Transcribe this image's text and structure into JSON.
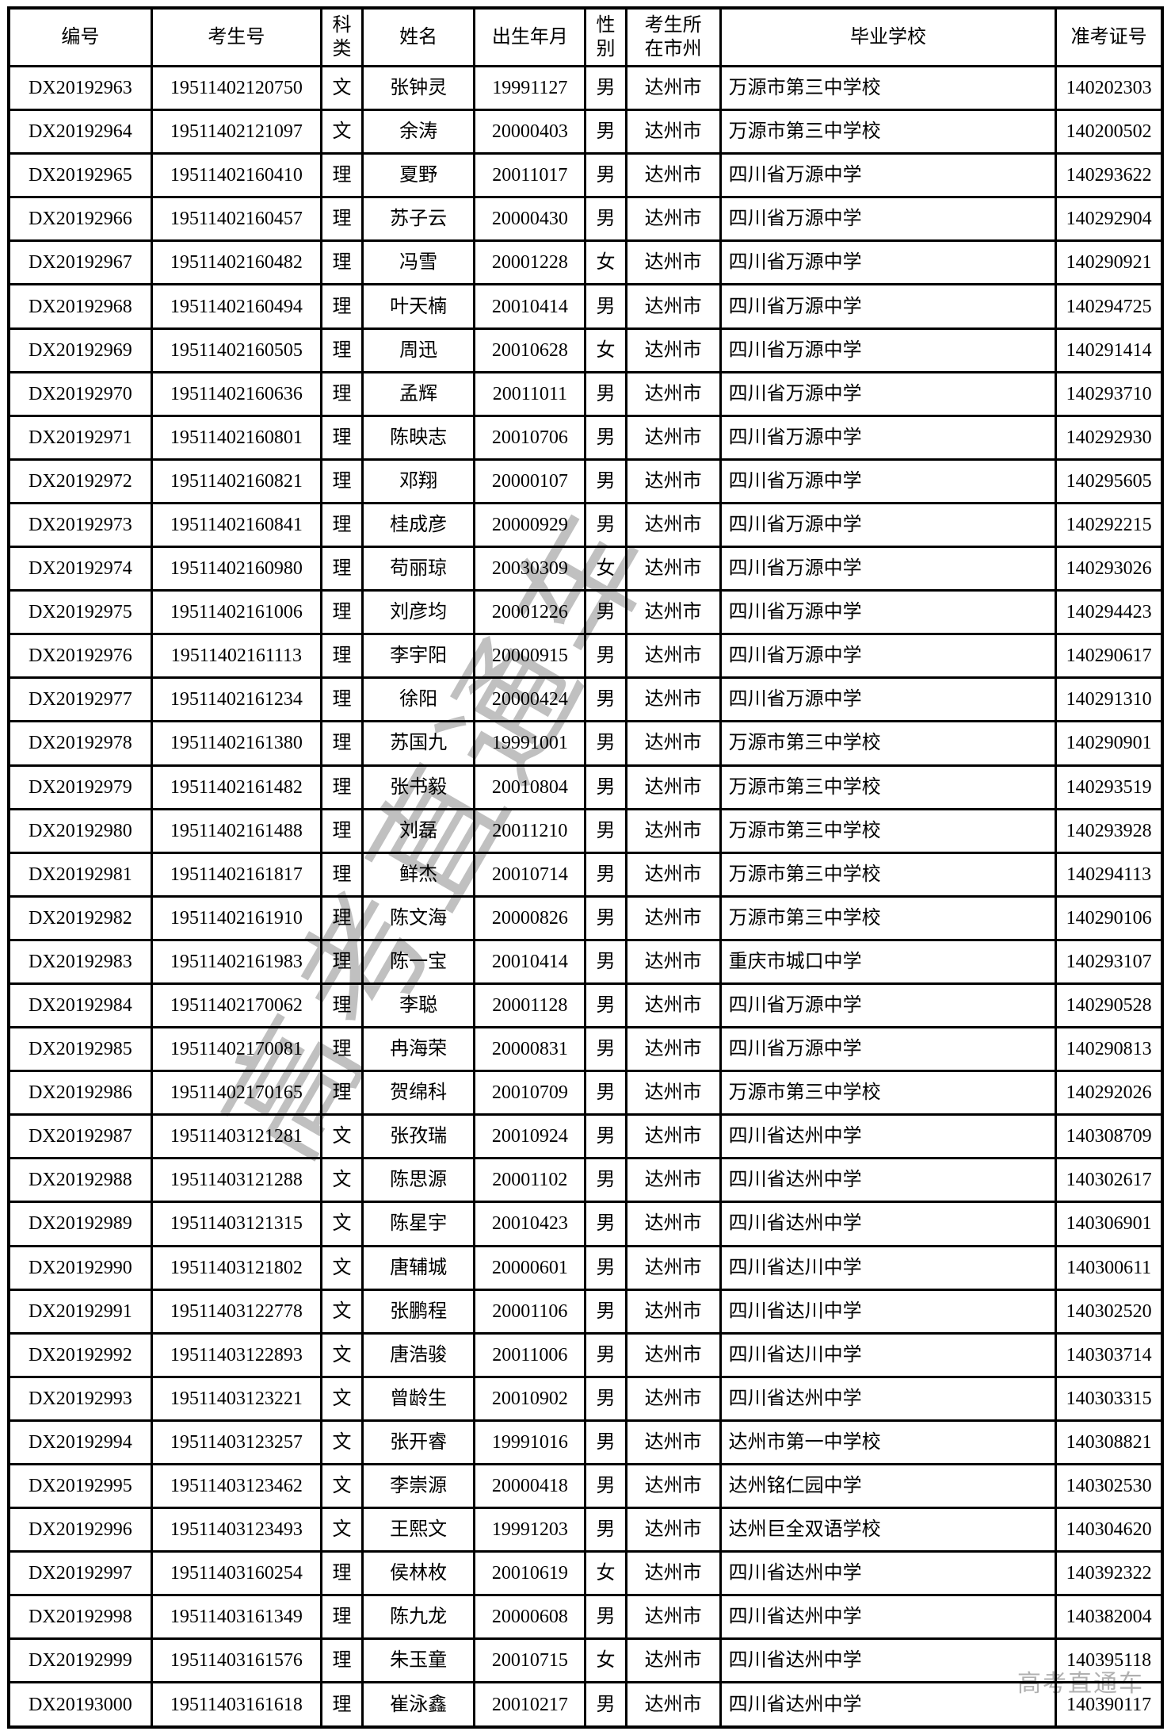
{
  "table": {
    "columns": [
      "编号",
      "考生号",
      "科类",
      "姓名",
      "出生年月",
      "性\n别",
      "考生所\n在市州",
      "毕业学校",
      "准考证号"
    ],
    "rows": [
      [
        "DX20192963",
        "19511402120750",
        "文",
        "张钟灵",
        "19991127",
        "男",
        "达州市",
        "万源市第三中学校",
        "140202303"
      ],
      [
        "DX20192964",
        "19511402121097",
        "文",
        "余涛",
        "20000403",
        "男",
        "达州市",
        "万源市第三中学校",
        "140200502"
      ],
      [
        "DX20192965",
        "19511402160410",
        "理",
        "夏野",
        "20011017",
        "男",
        "达州市",
        "四川省万源中学",
        "140293622"
      ],
      [
        "DX20192966",
        "19511402160457",
        "理",
        "苏子云",
        "20000430",
        "男",
        "达州市",
        "四川省万源中学",
        "140292904"
      ],
      [
        "DX20192967",
        "19511402160482",
        "理",
        "冯雪",
        "20001228",
        "女",
        "达州市",
        "四川省万源中学",
        "140290921"
      ],
      [
        "DX20192968",
        "19511402160494",
        "理",
        "叶天楠",
        "20010414",
        "男",
        "达州市",
        "四川省万源中学",
        "140294725"
      ],
      [
        "DX20192969",
        "19511402160505",
        "理",
        "周迅",
        "20010628",
        "女",
        "达州市",
        "四川省万源中学",
        "140291414"
      ],
      [
        "DX20192970",
        "19511402160636",
        "理",
        "孟辉",
        "20011011",
        "男",
        "达州市",
        "四川省万源中学",
        "140293710"
      ],
      [
        "DX20192971",
        "19511402160801",
        "理",
        "陈映志",
        "20010706",
        "男",
        "达州市",
        "四川省万源中学",
        "140292930"
      ],
      [
        "DX20192972",
        "19511402160821",
        "理",
        "邓翔",
        "20000107",
        "男",
        "达州市",
        "四川省万源中学",
        "140295605"
      ],
      [
        "DX20192973",
        "19511402160841",
        "理",
        "桂成彦",
        "20000929",
        "男",
        "达州市",
        "四川省万源中学",
        "140292215"
      ],
      [
        "DX20192974",
        "19511402160980",
        "理",
        "苟丽琼",
        "20030309",
        "女",
        "达州市",
        "四川省万源中学",
        "140293026"
      ],
      [
        "DX20192975",
        "19511402161006",
        "理",
        "刘彦均",
        "20001226",
        "男",
        "达州市",
        "四川省万源中学",
        "140294423"
      ],
      [
        "DX20192976",
        "19511402161113",
        "理",
        "李宇阳",
        "20000915",
        "男",
        "达州市",
        "四川省万源中学",
        "140290617"
      ],
      [
        "DX20192977",
        "19511402161234",
        "理",
        "徐阳",
        "20000424",
        "男",
        "达州市",
        "四川省万源中学",
        "140291310"
      ],
      [
        "DX20192978",
        "19511402161380",
        "理",
        "苏国九",
        "19991001",
        "男",
        "达州市",
        "万源市第三中学校",
        "140290901"
      ],
      [
        "DX20192979",
        "19511402161482",
        "理",
        "张书毅",
        "20010804",
        "男",
        "达州市",
        "万源市第三中学校",
        "140293519"
      ],
      [
        "DX20192980",
        "19511402161488",
        "理",
        "刘磊",
        "20011210",
        "男",
        "达州市",
        "万源市第三中学校",
        "140293928"
      ],
      [
        "DX20192981",
        "19511402161817",
        "理",
        "鲜杰",
        "20010714",
        "男",
        "达州市",
        "万源市第三中学校",
        "140294113"
      ],
      [
        "DX20192982",
        "19511402161910",
        "理",
        "陈文海",
        "20000826",
        "男",
        "达州市",
        "万源市第三中学校",
        "140290106"
      ],
      [
        "DX20192983",
        "19511402161983",
        "理",
        "陈一宝",
        "20010414",
        "男",
        "达州市",
        "重庆市城口中学",
        "140293107"
      ],
      [
        "DX20192984",
        "19511402170062",
        "理",
        "李聪",
        "20001128",
        "男",
        "达州市",
        "四川省万源中学",
        "140290528"
      ],
      [
        "DX20192985",
        "19511402170081",
        "理",
        "冉海荣",
        "20000831",
        "男",
        "达州市",
        "四川省万源中学",
        "140290813"
      ],
      [
        "DX20192986",
        "19511402170165",
        "理",
        "贺绵科",
        "20010709",
        "男",
        "达州市",
        "万源市第三中学校",
        "140292026"
      ],
      [
        "DX20192987",
        "19511403121281",
        "文",
        "张孜瑞",
        "20010924",
        "男",
        "达州市",
        "四川省达州中学",
        "140308709"
      ],
      [
        "DX20192988",
        "19511403121288",
        "文",
        "陈思源",
        "20001102",
        "男",
        "达州市",
        "四川省达州中学",
        "140302617"
      ],
      [
        "DX20192989",
        "19511403121315",
        "文",
        "陈星宇",
        "20010423",
        "男",
        "达州市",
        "四川省达州中学",
        "140306901"
      ],
      [
        "DX20192990",
        "19511403121802",
        "文",
        "唐辅城",
        "20000601",
        "男",
        "达州市",
        "四川省达川中学",
        "140300611"
      ],
      [
        "DX20192991",
        "19511403122778",
        "文",
        "张鹏程",
        "20001106",
        "男",
        "达州市",
        "四川省达川中学",
        "140302520"
      ],
      [
        "DX20192992",
        "19511403122893",
        "文",
        "唐浩骏",
        "20011006",
        "男",
        "达州市",
        "四川省达川中学",
        "140303714"
      ],
      [
        "DX20192993",
        "19511403123221",
        "文",
        "曾龄生",
        "20010902",
        "男",
        "达州市",
        "四川省达州中学",
        "140303315"
      ],
      [
        "DX20192994",
        "19511403123257",
        "文",
        "张开睿",
        "19991016",
        "男",
        "达州市",
        "达州市第一中学校",
        "140308821"
      ],
      [
        "DX20192995",
        "19511403123462",
        "文",
        "李崇源",
        "20000418",
        "男",
        "达州市",
        "达州铭仁园中学",
        "140302530"
      ],
      [
        "DX20192996",
        "19511403123493",
        "文",
        "王熙文",
        "19991203",
        "男",
        "达州市",
        "达州巨全双语学校",
        "140304620"
      ],
      [
        "DX20192997",
        "19511403160254",
        "理",
        "侯林枚",
        "20010619",
        "女",
        "达州市",
        "四川省达州中学",
        "140392322"
      ],
      [
        "DX20192998",
        "19511403161349",
        "理",
        "陈九龙",
        "20000608",
        "男",
        "达州市",
        "四川省达州中学",
        "140382004"
      ],
      [
        "DX20192999",
        "19511403161576",
        "理",
        "朱玉童",
        "20010715",
        "女",
        "达州市",
        "四川省达州中学",
        "140395118"
      ],
      [
        "DX20193000",
        "19511403161618",
        "理",
        "崔泳鑫",
        "20010217",
        "男",
        "达州市",
        "四川省达州中学",
        "140390117"
      ]
    ]
  },
  "watermark": {
    "diagonal": "高考直通车",
    "corner": "高考直通车"
  },
  "colors": {
    "border": "#000000",
    "text": "#000000",
    "watermark_gray": "#b5b5b5"
  }
}
